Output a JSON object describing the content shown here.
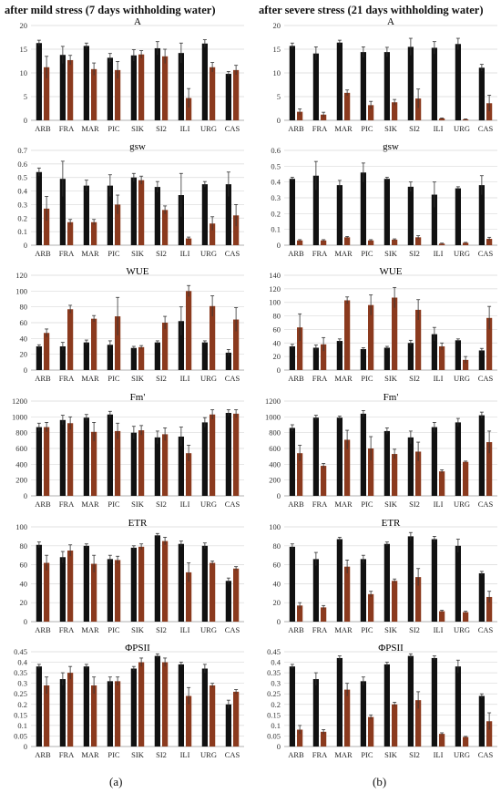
{
  "titles": {
    "left": "after mild stress (7 days withholding water)",
    "right": "after severe stress (21 days withholding water)"
  },
  "panel_labels": {
    "left": "(a)",
    "right": "(b)"
  },
  "colors": {
    "control": "#111111",
    "stress": "#8b3a1e"
  },
  "chart_data": [
    {
      "type": "bar",
      "panel": "a",
      "title": "A",
      "categories": [
        "ARB",
        "FRA",
        "MAR",
        "PIC",
        "SIK",
        "SI2",
        "ILI",
        "URG",
        "CAS"
      ],
      "ylim": [
        0,
        20
      ],
      "yticks": [
        0,
        5,
        10,
        15,
        20
      ],
      "series": [
        {
          "values": [
            16.3,
            13.8,
            15.7,
            13.2,
            13.7,
            15.2,
            14.2,
            16.2,
            9.8
          ],
          "errors": [
            0.6,
            1.8,
            0.6,
            0.9,
            1.2,
            1.4,
            2.1,
            0.8,
            0.5
          ]
        },
        {
          "values": [
            11.2,
            12.7,
            10.8,
            10.6,
            13.9,
            13.5,
            4.7,
            11.2,
            10.6
          ],
          "errors": [
            2.3,
            1.0,
            1.3,
            1.8,
            0.8,
            1.5,
            2.0,
            1.0,
            1.0
          ]
        }
      ]
    },
    {
      "type": "bar",
      "panel": "a",
      "title": "gsw",
      "categories": [
        "ARB",
        "FRA",
        "MAR",
        "PIC",
        "SIK",
        "SI2",
        "ILI",
        "URG",
        "CAS"
      ],
      "ylim": [
        0,
        0.7
      ],
      "yticks": [
        0,
        0.1,
        0.2,
        0.3,
        0.4,
        0.5,
        0.6,
        0.7
      ],
      "series": [
        {
          "values": [
            0.54,
            0.49,
            0.44,
            0.44,
            0.5,
            0.43,
            0.37,
            0.45,
            0.45
          ],
          "errors": [
            0.03,
            0.13,
            0.04,
            0.08,
            0.03,
            0.04,
            0.16,
            0.02,
            0.09
          ]
        },
        {
          "values": [
            0.27,
            0.17,
            0.17,
            0.3,
            0.48,
            0.26,
            0.05,
            0.16,
            0.22
          ],
          "errors": [
            0.09,
            0.02,
            0.02,
            0.07,
            0.03,
            0.03,
            0.01,
            0.05,
            0.08
          ]
        }
      ]
    },
    {
      "type": "bar",
      "panel": "a",
      "title": "WUE",
      "categories": [
        "ARB",
        "FRA",
        "MAR",
        "PIC",
        "SIK",
        "SI2",
        "ILI",
        "URG",
        "CAS"
      ],
      "ylim": [
        0,
        120
      ],
      "yticks": [
        0,
        20,
        40,
        60,
        80,
        100,
        120
      ],
      "series": [
        {
          "values": [
            30,
            30,
            35,
            32,
            28,
            35,
            62,
            35,
            22
          ],
          "errors": [
            2,
            5,
            3,
            5,
            2,
            2,
            18,
            2,
            4
          ]
        },
        {
          "values": [
            47,
            77,
            65,
            68,
            29,
            60,
            100,
            81,
            64
          ],
          "errors": [
            5,
            5,
            4,
            24,
            2,
            8,
            7,
            13,
            15
          ]
        }
      ]
    },
    {
      "type": "bar",
      "panel": "a",
      "title": "Fm'",
      "categories": [
        "ARB",
        "FRA",
        "MAR",
        "PIC",
        "SIK",
        "SI2",
        "ILI",
        "URG",
        "CAS"
      ],
      "ylim": [
        0,
        1200
      ],
      "yticks": [
        0,
        200,
        400,
        600,
        800,
        1000,
        1200
      ],
      "series": [
        {
          "values": [
            870,
            960,
            990,
            1030,
            800,
            740,
            750,
            930,
            1050
          ],
          "errors": [
            50,
            60,
            40,
            40,
            80,
            80,
            120,
            60,
            40
          ]
        },
        {
          "values": [
            870,
            920,
            810,
            820,
            830,
            780,
            540,
            1030,
            1040
          ],
          "errors": [
            60,
            80,
            120,
            100,
            60,
            80,
            100,
            60,
            50
          ]
        }
      ]
    },
    {
      "type": "bar",
      "panel": "a",
      "title": "ETR",
      "categories": [
        "ARB",
        "FRA",
        "MAR",
        "PIC",
        "SIK",
        "SI2",
        "ILI",
        "URG",
        "CAS"
      ],
      "ylim": [
        0,
        100
      ],
      "yticks": [
        0,
        20,
        40,
        60,
        80,
        100
      ],
      "series": [
        {
          "values": [
            81,
            68,
            80,
            66,
            78,
            91,
            82,
            80,
            43
          ],
          "errors": [
            3,
            6,
            2,
            4,
            2,
            2,
            3,
            3,
            3
          ]
        },
        {
          "values": [
            62,
            75,
            61,
            65,
            79,
            85,
            52,
            62,
            56
          ],
          "errors": [
            8,
            6,
            9,
            4,
            3,
            4,
            10,
            2,
            2
          ]
        }
      ]
    },
    {
      "type": "bar",
      "panel": "a",
      "title": "ΦPSII",
      "categories": [
        "ARB",
        "FRA",
        "MAR",
        "PIC",
        "SIK",
        "SI2",
        "ILI",
        "URG",
        "CAS"
      ],
      "ylim": [
        0,
        0.45
      ],
      "yticks": [
        0,
        0.05,
        0.1,
        0.15,
        0.2,
        0.25,
        0.3,
        0.35,
        0.4,
        0.45
      ],
      "series": [
        {
          "values": [
            0.38,
            0.32,
            0.38,
            0.31,
            0.37,
            0.43,
            0.39,
            0.37,
            0.2
          ],
          "errors": [
            0.01,
            0.03,
            0.01,
            0.02,
            0.01,
            0.01,
            0.01,
            0.02,
            0.02
          ]
        },
        {
          "values": [
            0.29,
            0.35,
            0.29,
            0.31,
            0.4,
            0.4,
            0.24,
            0.29,
            0.26
          ],
          "errors": [
            0.04,
            0.03,
            0.04,
            0.02,
            0.02,
            0.02,
            0.04,
            0.01,
            0.01
          ]
        }
      ]
    },
    {
      "type": "bar",
      "panel": "b",
      "title": "A",
      "categories": [
        "ARB",
        "FRA",
        "MAR",
        "PIC",
        "SIK",
        "SI2",
        "ILI",
        "URG",
        "CAS"
      ],
      "ylim": [
        0,
        20
      ],
      "yticks": [
        0,
        5,
        10,
        15,
        20
      ],
      "series": [
        {
          "values": [
            15.7,
            14.1,
            16.4,
            14.4,
            14.4,
            15.5,
            15.3,
            16.1,
            11.1
          ],
          "errors": [
            0.6,
            1.4,
            0.5,
            1.1,
            1.0,
            1.8,
            1.3,
            1.2,
            0.7
          ]
        },
        {
          "values": [
            1.8,
            1.2,
            5.8,
            3.2,
            3.8,
            4.6,
            0.4,
            0.2,
            3.6
          ],
          "errors": [
            0.6,
            0.5,
            0.6,
            0.8,
            0.6,
            2.0,
            0.1,
            0.1,
            1.7
          ]
        }
      ]
    },
    {
      "type": "bar",
      "panel": "b",
      "title": "gsw",
      "categories": [
        "ARB",
        "FRA",
        "MAR",
        "PIC",
        "SIK",
        "SI2",
        "ILI",
        "URG",
        "CAS"
      ],
      "ylim": [
        0,
        0.6
      ],
      "yticks": [
        0,
        0.1,
        0.2,
        0.3,
        0.4,
        0.5,
        0.6
      ],
      "series": [
        {
          "values": [
            0.42,
            0.44,
            0.38,
            0.46,
            0.42,
            0.37,
            0.32,
            0.36,
            0.38
          ],
          "errors": [
            0.01,
            0.09,
            0.03,
            0.06,
            0.01,
            0.03,
            0.08,
            0.01,
            0.06
          ]
        },
        {
          "values": [
            0.03,
            0.03,
            0.05,
            0.03,
            0.035,
            0.05,
            0.01,
            0.015,
            0.04
          ],
          "errors": [
            0.005,
            0.005,
            0.005,
            0.005,
            0.005,
            0.01,
            0.003,
            0.003,
            0.01
          ]
        }
      ]
    },
    {
      "type": "bar",
      "panel": "b",
      "title": "WUE",
      "categories": [
        "ARB",
        "FRA",
        "MAR",
        "PIC",
        "SIK",
        "SI2",
        "ILI",
        "URG",
        "CAS"
      ],
      "ylim": [
        0,
        140
      ],
      "yticks": [
        0,
        20,
        40,
        60,
        80,
        100,
        120,
        140
      ],
      "series": [
        {
          "values": [
            35,
            33,
            43,
            31,
            33,
            40,
            53,
            44,
            29
          ],
          "errors": [
            3,
            4,
            3,
            2,
            2,
            4,
            10,
            2,
            3
          ]
        },
        {
          "values": [
            63,
            38,
            103,
            96,
            107,
            89,
            35,
            15,
            77
          ],
          "errors": [
            20,
            10,
            5,
            15,
            15,
            15,
            5,
            5,
            17
          ]
        }
      ]
    },
    {
      "type": "bar",
      "panel": "b",
      "title": "Fm'",
      "categories": [
        "ARB",
        "FRA",
        "MAR",
        "PIC",
        "SIK",
        "SI2",
        "ILI",
        "URG",
        "CAS"
      ],
      "ylim": [
        0,
        1200
      ],
      "yticks": [
        0,
        200,
        400,
        600,
        800,
        1000,
        1200
      ],
      "series": [
        {
          "values": [
            860,
            990,
            990,
            1040,
            820,
            740,
            870,
            930,
            1020
          ],
          "errors": [
            40,
            30,
            20,
            40,
            40,
            80,
            60,
            50,
            40
          ]
        },
        {
          "values": [
            540,
            380,
            710,
            600,
            530,
            560,
            310,
            430,
            680
          ],
          "errors": [
            100,
            30,
            120,
            150,
            60,
            120,
            20,
            10,
            140
          ]
        }
      ]
    },
    {
      "type": "bar",
      "panel": "b",
      "title": "ETR",
      "categories": [
        "ARB",
        "FRA",
        "MAR",
        "PIC",
        "SIK",
        "SI2",
        "ILI",
        "URG",
        "CAS"
      ],
      "ylim": [
        0,
        100
      ],
      "yticks": [
        0,
        20,
        40,
        60,
        80,
        100
      ],
      "series": [
        {
          "values": [
            79,
            66,
            87,
            66,
            82,
            90,
            87,
            80,
            51
          ],
          "errors": [
            3,
            7,
            2,
            4,
            2,
            4,
            3,
            7,
            2
          ]
        },
        {
          "values": [
            17,
            15,
            58,
            29,
            43,
            47,
            11,
            10,
            26
          ],
          "errors": [
            3,
            2,
            7,
            3,
            2,
            9,
            1,
            1,
            6
          ]
        }
      ]
    },
    {
      "type": "bar",
      "panel": "b",
      "title": "ΦPSII",
      "categories": [
        "ARB",
        "FRA",
        "MAR",
        "PIC",
        "SIK",
        "SI2",
        "ILI",
        "URG",
        "CAS"
      ],
      "ylim": [
        0,
        0.45
      ],
      "yticks": [
        0,
        0.05,
        0.1,
        0.15,
        0.2,
        0.25,
        0.3,
        0.35,
        0.4,
        0.45
      ],
      "series": [
        {
          "values": [
            0.38,
            0.32,
            0.42,
            0.31,
            0.39,
            0.43,
            0.42,
            0.38,
            0.24
          ],
          "errors": [
            0.01,
            0.03,
            0.01,
            0.02,
            0.01,
            0.01,
            0.01,
            0.03,
            0.01
          ]
        },
        {
          "values": [
            0.08,
            0.07,
            0.27,
            0.14,
            0.2,
            0.22,
            0.06,
            0.045,
            0.12
          ],
          "errors": [
            0.02,
            0.01,
            0.03,
            0.01,
            0.01,
            0.04,
            0.005,
            0.003,
            0.04
          ]
        }
      ]
    }
  ]
}
